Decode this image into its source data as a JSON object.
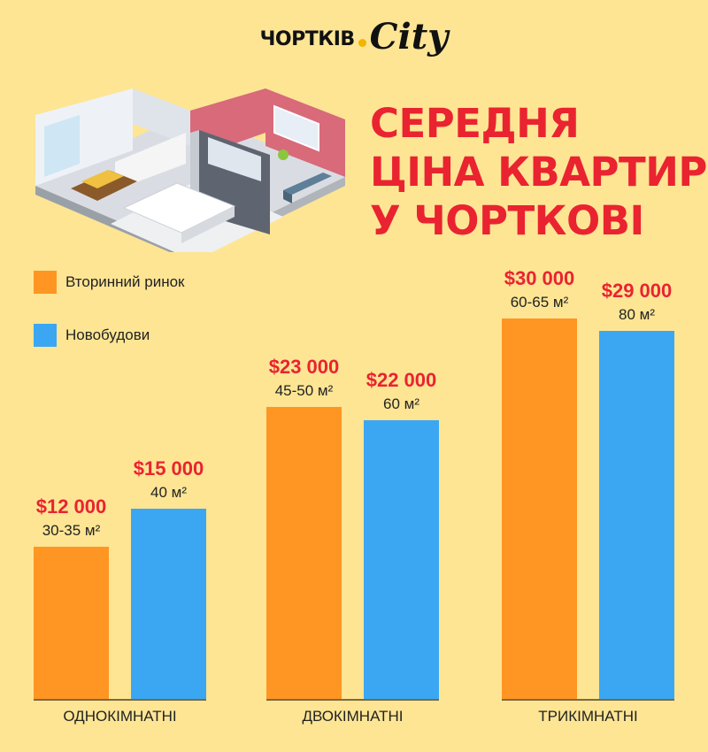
{
  "header": {
    "logo_text": "ЧОРТКІВ",
    "logo_script": "City",
    "title_lines": [
      "СЕРЕДНЯ",
      "ЦІНА КВАРТИР",
      "У ЧОРТКОВІ"
    ]
  },
  "legend": [
    {
      "label": "Вторинний ринок",
      "color": "#ff9523"
    },
    {
      "label": "Новобудови",
      "color": "#3ba7f3"
    }
  ],
  "chart_data": {
    "type": "bar",
    "categories": [
      "ОДНОКІМНАТНІ",
      "ДВОКІМНАТНІ",
      "ТРИКІМНАТНІ"
    ],
    "series": [
      {
        "name": "Вторинний ринок",
        "color": "#ff9523",
        "values": [
          12000,
          23000,
          30000
        ],
        "price_labels": [
          "$12 000",
          "$23 000",
          "$30 000"
        ],
        "area_labels": [
          "30-35 м²",
          "45-50 м²",
          "60-65 м²"
        ]
      },
      {
        "name": "Новобудови",
        "color": "#3ba7f3",
        "values": [
          15000,
          22000,
          29000
        ],
        "price_labels": [
          "$15 000",
          "$22 000",
          "$29 000"
        ],
        "area_labels": [
          "40 м²",
          "60 м²",
          "80 м²"
        ]
      }
    ],
    "ylim": [
      0,
      30000
    ],
    "grid": false,
    "legend_position": "top-left"
  }
}
